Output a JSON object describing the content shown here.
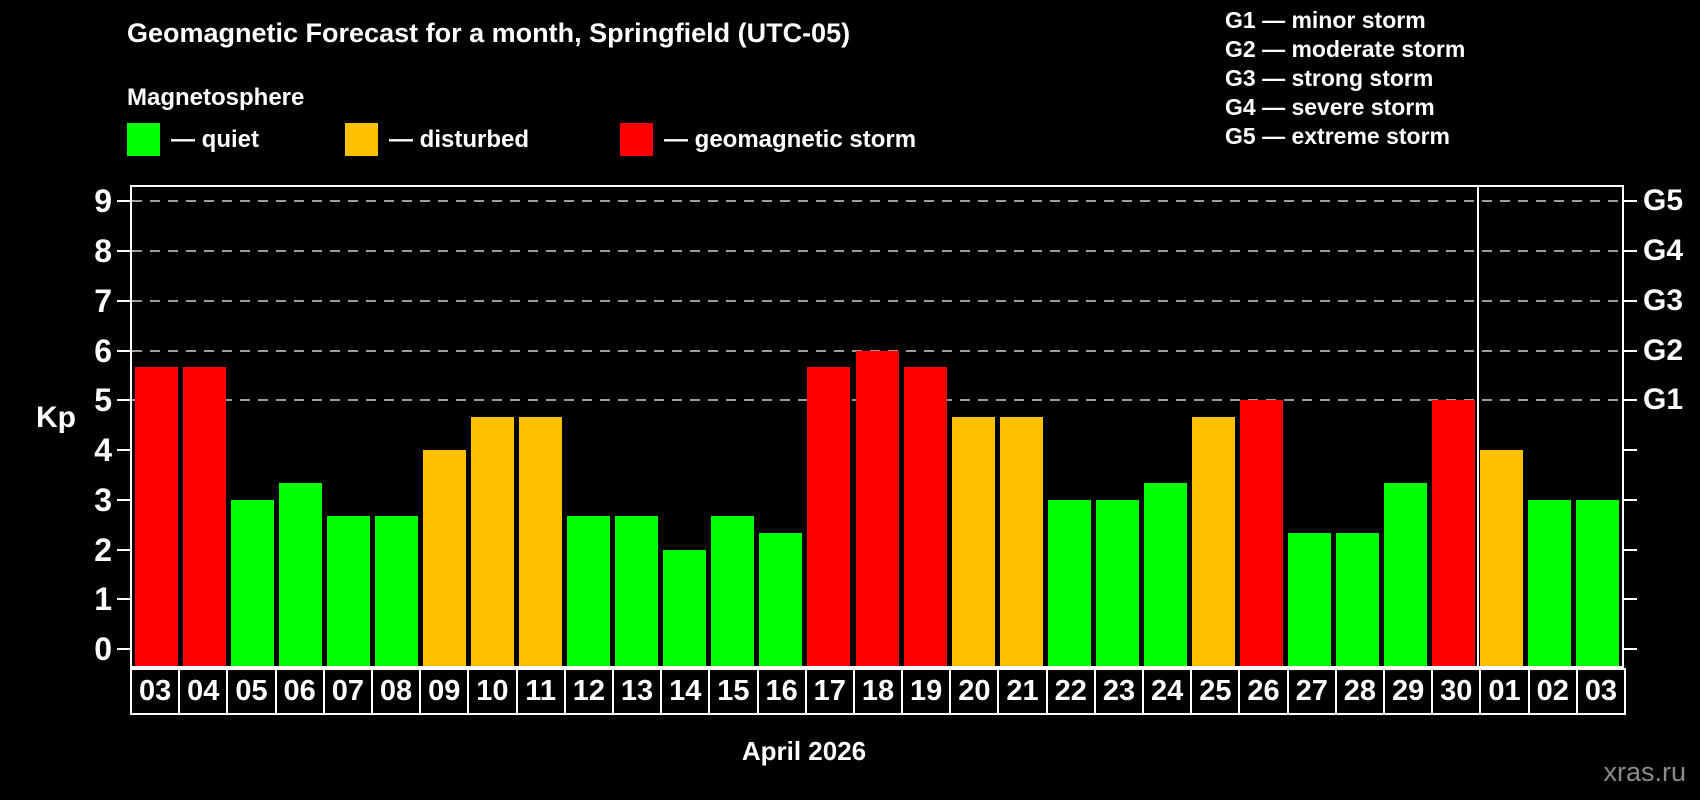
{
  "header": {
    "title": "Geomagnetic Forecast for a month, Springfield (UTC-05)",
    "subtitle": "Magnetosphere"
  },
  "legend": {
    "items": [
      {
        "status": "quiet",
        "color": "#00ff00",
        "label": "— quiet"
      },
      {
        "status": "disturbed",
        "color": "#ffc000",
        "label": "— disturbed"
      },
      {
        "status": "storm",
        "color": "#ff0000",
        "label": "— geomagnetic storm"
      }
    ]
  },
  "g_scale_legend": {
    "items": [
      {
        "code": "G1",
        "label": "minor storm"
      },
      {
        "code": "G2",
        "label": "moderate storm"
      },
      {
        "code": "G3",
        "label": "strong storm"
      },
      {
        "code": "G4",
        "label": "severe storm"
      },
      {
        "code": "G5",
        "label": "extreme storm"
      }
    ],
    "separator": "—"
  },
  "chart_data": {
    "type": "bar",
    "title": "Geomagnetic Forecast for a month, Springfield (UTC-05)",
    "subtitle": "Magnetosphere",
    "ylabel": "Kp",
    "xlabel": "April 2026",
    "ylim": [
      0,
      9
    ],
    "yticks": [
      0,
      1,
      2,
      3,
      4,
      5,
      6,
      7,
      8,
      9
    ],
    "gridlines": [
      5,
      6,
      7,
      8,
      9
    ],
    "grid": "dashed horizontal at storm levels only",
    "legend_position": "top-left",
    "right_axis_labels": [
      {
        "value": 5,
        "label": "G1"
      },
      {
        "value": 6,
        "label": "G2"
      },
      {
        "value": 7,
        "label": "G3"
      },
      {
        "value": 8,
        "label": "G4"
      },
      {
        "value": 9,
        "label": "G5"
      }
    ],
    "categories": [
      "03",
      "04",
      "05",
      "06",
      "07",
      "08",
      "09",
      "10",
      "11",
      "12",
      "13",
      "14",
      "15",
      "16",
      "17",
      "18",
      "19",
      "20",
      "21",
      "22",
      "23",
      "24",
      "25",
      "26",
      "27",
      "28",
      "29",
      "30",
      "01",
      "02",
      "03"
    ],
    "values": [
      5.67,
      5.67,
      3.0,
      3.33,
      2.67,
      2.67,
      4.0,
      4.67,
      4.67,
      2.67,
      2.67,
      2.0,
      2.67,
      2.33,
      5.67,
      6.0,
      5.67,
      4.67,
      4.67,
      3.0,
      3.0,
      3.33,
      4.67,
      5.0,
      2.33,
      2.33,
      3.33,
      5.0,
      4.0,
      3.0,
      3.0
    ],
    "statuses": [
      "storm",
      "storm",
      "quiet",
      "quiet",
      "quiet",
      "quiet",
      "disturbed",
      "disturbed",
      "disturbed",
      "quiet",
      "quiet",
      "quiet",
      "quiet",
      "quiet",
      "storm",
      "storm",
      "storm",
      "disturbed",
      "disturbed",
      "quiet",
      "quiet",
      "quiet",
      "disturbed",
      "storm",
      "quiet",
      "quiet",
      "quiet",
      "storm",
      "disturbed",
      "quiet",
      "quiet"
    ],
    "colors": {
      "quiet": "#00ff00",
      "disturbed": "#ffc000",
      "storm": "#ff0000"
    },
    "month_separator_after_index": 27
  },
  "footer": {
    "axis_title": "April 2026",
    "watermark": "xras.ru"
  }
}
